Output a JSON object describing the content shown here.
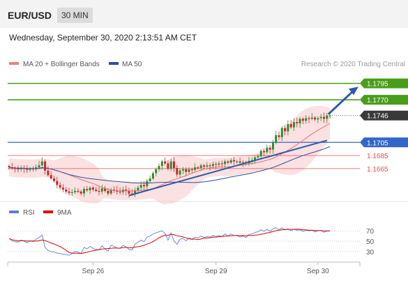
{
  "header": {
    "pair": "EUR/USD",
    "timeframe": "30 MIN"
  },
  "timestamp": "Wednesday, September 30, 2020 2:13:51 AM CET",
  "legend": {
    "bb": {
      "label": "MA 20 + Bollinger Bands",
      "color": "#f08080"
    },
    "ma50": {
      "label": "MA 50",
      "color": "#2b4f9e"
    },
    "rsi": {
      "label": "RSI",
      "color": "#5b7fd6"
    },
    "rsi_ma": {
      "label": "9MA",
      "color": "#e00000"
    }
  },
  "credit": "Research © 2020 Trading Central",
  "colors": {
    "up": "#2e8b2e",
    "down": "#c62828",
    "green": "#4a9d1a",
    "blue": "#3266c8",
    "red": "#e05050",
    "current": "#3a3a3a",
    "arrow": "#2b5aa8"
  },
  "chart_data": {
    "type": "candlestick",
    "price_range": [
      1.1616,
      1.1818
    ],
    "levels": [
      {
        "value": 1.1795,
        "label": "1.1795",
        "kind": "resistance"
      },
      {
        "value": 1.177,
        "label": "1.1770",
        "kind": "resistance"
      },
      {
        "value": 1.1746,
        "label": "1.1746",
        "kind": "current"
      },
      {
        "value": 1.1705,
        "label": "1.1705",
        "kind": "pivot"
      },
      {
        "value": 1.1685,
        "label": "1.1685",
        "kind": "support"
      },
      {
        "value": 1.1665,
        "label": "1.1665",
        "kind": "support"
      }
    ],
    "x_ticks": [
      {
        "label": "Sep 26",
        "index": 28
      },
      {
        "label": "Sep 29",
        "index": 69
      },
      {
        "label": "Sep 30",
        "index": 103
      }
    ],
    "rsi_ticks": [
      70,
      50,
      30
    ],
    "closes": [
      1.1667,
      1.1666,
      1.1665,
      1.1664,
      1.1666,
      1.1665,
      1.1663,
      1.1665,
      1.1664,
      1.1667,
      1.167,
      1.1676,
      1.1662,
      1.1655,
      1.165,
      1.1646,
      1.164,
      1.1636,
      1.1633,
      1.163,
      1.1628,
      1.1629,
      1.1631,
      1.163,
      1.1627,
      1.1634,
      1.1632,
      1.1636,
      1.1633,
      1.1631,
      1.163,
      1.1635,
      1.1631,
      1.1627,
      1.1633,
      1.1632,
      1.163,
      1.1629,
      1.1633,
      1.1631,
      1.1627,
      1.1626,
      1.1632,
      1.1636,
      1.164,
      1.1638,
      1.1646,
      1.165,
      1.1658,
      1.1664,
      1.1669,
      1.1676,
      1.1673,
      1.1665,
      1.1676,
      1.1666,
      1.1656,
      1.1662,
      1.1664,
      1.166,
      1.1664,
      1.1663,
      1.1667,
      1.1666,
      1.167,
      1.1668,
      1.167,
      1.1669,
      1.1672,
      1.1671,
      1.1673,
      1.1672,
      1.1676,
      1.1674,
      1.1678,
      1.1676,
      1.1676,
      1.1674,
      1.1675,
      1.1673,
      1.1677,
      1.1678,
      1.1682,
      1.1684,
      1.1692,
      1.169,
      1.1697,
      1.1694,
      1.1705,
      1.1716,
      1.1713,
      1.1727,
      1.1722,
      1.1733,
      1.1728,
      1.1736,
      1.1734,
      1.1741,
      1.1738,
      1.1742,
      1.1741,
      1.1743,
      1.174,
      1.1742,
      1.1744,
      1.1741,
      1.1746,
      1.1746
    ],
    "rsi": [
      55,
      51,
      49,
      48,
      52,
      50,
      47,
      51,
      49,
      54,
      57,
      62,
      38,
      32,
      30,
      29,
      27,
      26,
      25,
      24,
      23,
      26,
      30,
      29,
      26,
      38,
      35,
      40,
      36,
      34,
      33,
      41,
      35,
      31,
      42,
      40,
      37,
      36,
      42,
      39,
      34,
      33,
      44,
      48,
      52,
      49,
      58,
      60,
      64,
      66,
      68,
      70,
      65,
      52,
      66,
      50,
      44,
      54,
      55,
      51,
      56,
      54,
      58,
      56,
      60,
      57,
      59,
      58,
      61,
      59,
      61,
      59,
      64,
      60,
      64,
      61,
      61,
      58,
      60,
      57,
      63,
      64,
      67,
      68,
      72,
      69,
      73,
      69,
      74,
      76,
      72,
      76,
      72,
      74,
      70,
      73,
      71,
      72,
      69,
      71,
      70,
      71,
      68,
      70,
      71,
      67,
      70,
      70
    ]
  }
}
